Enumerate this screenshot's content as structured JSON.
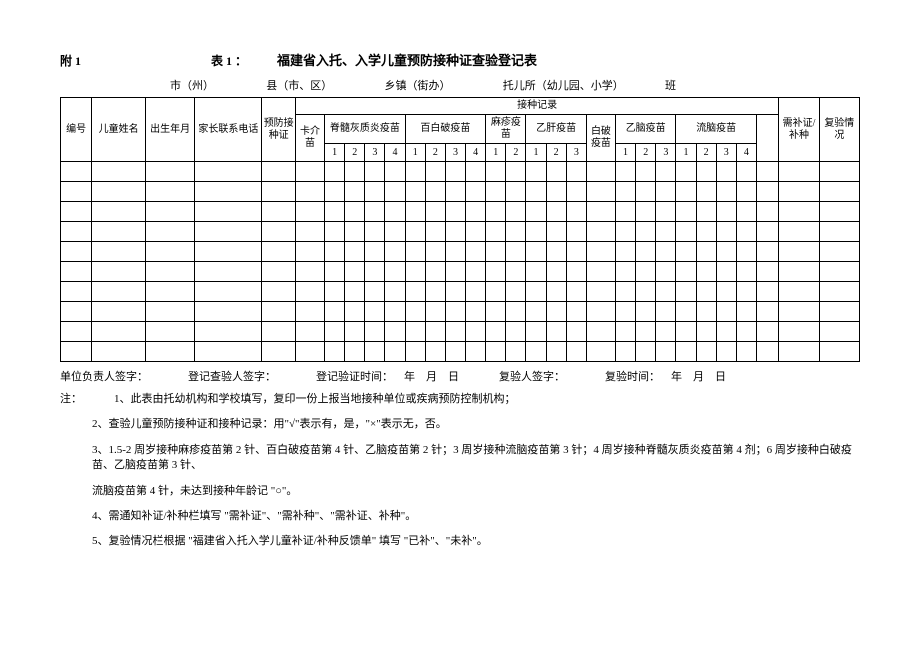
{
  "header": {
    "attach": "附 1",
    "table_no": "表 1 ：",
    "title": "福建省入托、入学儿童预防接种证查验登记表"
  },
  "location": {
    "city": "市（州）",
    "county": "县（市、区）",
    "town": "乡镇（街办）",
    "nursery": "托儿所（幼儿园、小学）",
    "class": "班"
  },
  "columns": {
    "no": "编号",
    "name": "儿童姓名",
    "birth": "出生年月",
    "phone": "家长联系电话",
    "cert": "预防接种证",
    "records": "接种记录",
    "bcg": "卡介苗",
    "polio": "脊髓灰质炎疫苗",
    "dpt": "百白破疫苗",
    "measles": "麻疹疫苗",
    "hepb": "乙肝疫苗",
    "dt": "白破疫苗",
    "je": "乙脑疫苗",
    "ecm": "流脑疫苗",
    "need": "需补证/补种",
    "recheck": "复验情况"
  },
  "doses": [
    "1",
    "2",
    "3",
    "4"
  ],
  "signatures": {
    "unit": "单位负责人签字：",
    "checker": "登记查验人签字：",
    "check_time": "登记验证时间：    年    月    日",
    "reviewer": "复验人签字：",
    "review_time": "复验时间：    年    月    日"
  },
  "notes": {
    "lead": "注：",
    "n1": "1、此表由托幼机构和学校填写，复印一份上报当地接种单位或疾病预防控制机构；",
    "n2": "2、查验儿童预防接种证和接种记录：用\"√\"表示有，是，\"×\"表示无，否。",
    "n3a": "3、1.5-2 周岁接种麻疹疫苗第 2 针、百白破疫苗第 4 针、乙脑疫苗第 2 针；3 周岁接种流脑疫苗第 3 针；4 周岁接种脊髓灰质炎疫苗第 4 剂；6 周岁接种白破疫苗、乙脑疫苗第 3 针、",
    "n3b": "流脑疫苗第 4 针，未达到接种年龄记 \"○\"。",
    "n4": "4、需通知补证/补种栏填写 \"需补证\"、\"需补种\"、\"需补证、补种\"。",
    "n5": "5、复验情况栏根据 \"福建省入托入学儿童补证/补种反馈单\" 填写 \"已补\"、\"未补\"。"
  },
  "style": {
    "blank_rows": 10
  }
}
